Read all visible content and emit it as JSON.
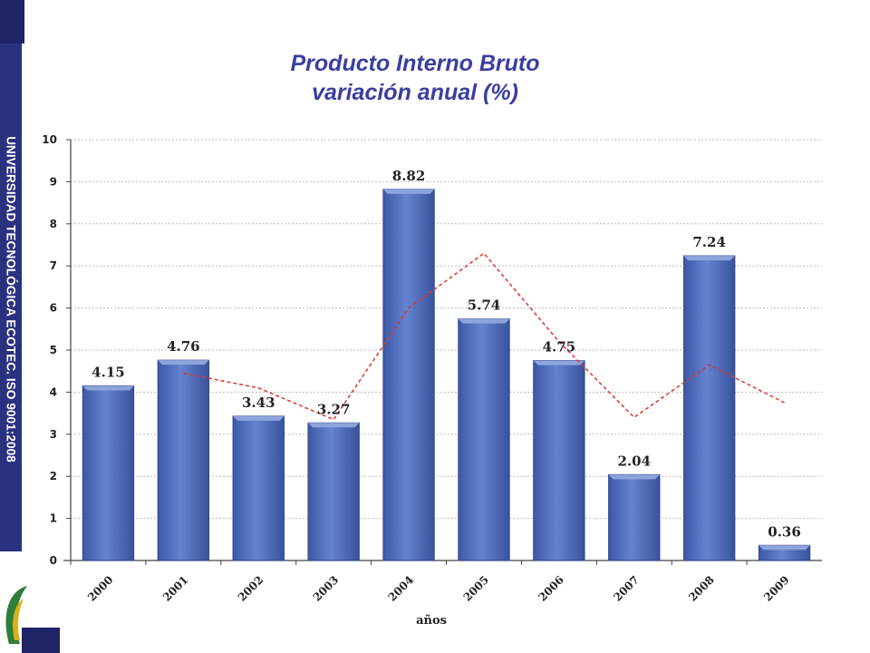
{
  "sidebar": {
    "text": "UNIVERSIDAD TECNOLÓGICA ECOTEC. ISO 9001:2008",
    "color": "#2a3280"
  },
  "chart_data": {
    "type": "bar",
    "title_line1": "Producto Interno Bruto",
    "title_line2": "variación anual (%)",
    "xlabel": "años",
    "ylabel": "",
    "categories": [
      "2000",
      "2001",
      "2002",
      "2003",
      "2004",
      "2005",
      "2006",
      "2007",
      "2008",
      "2009"
    ],
    "values": [
      4.15,
      4.76,
      3.43,
      3.27,
      8.82,
      5.74,
      4.75,
      2.04,
      7.24,
      0.36
    ],
    "value_labels": [
      "4.15",
      "4.76",
      "3.43",
      "3.27",
      "8.82",
      "5.74",
      "4.75",
      "2.04",
      "7.24",
      "0.36"
    ],
    "trend_line": {
      "style": "dashed",
      "color": "#e0352b",
      "x": [
        "2001",
        "2002",
        "2003",
        "2004",
        "2005",
        "2006",
        "2007",
        "2008",
        "2009"
      ],
      "values": [
        4.45,
        4.1,
        3.35,
        6.0,
        7.3,
        5.2,
        3.4,
        4.65,
        3.75
      ]
    },
    "ylim": [
      0,
      10
    ],
    "yticks": [
      "0",
      "1",
      "2",
      "3",
      "4",
      "5",
      "6",
      "7",
      "8",
      "9",
      "10"
    ],
    "grid": true,
    "bar_color": "#5b78c4"
  }
}
